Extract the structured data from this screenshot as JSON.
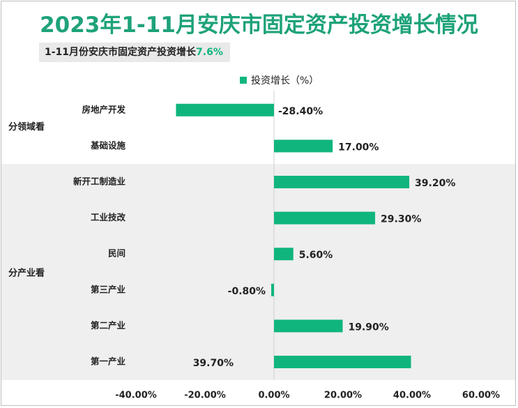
{
  "header": {
    "title": "2023年1-11月安庆市固定资产投资增长情况",
    "subtitle_prefix": "1-11月份安庆市固定资产投资增长",
    "subtitle_value": "7.6%"
  },
  "colors": {
    "bar": "#10b57e",
    "title": "#1ea27a",
    "band": "#efefef"
  },
  "chart_data": {
    "type": "bar",
    "orientation": "horizontal",
    "legend": "投资增长（%）",
    "legend_position": "top",
    "categories": [
      "房地产开发",
      "基础设施",
      "新开工制造业",
      "工业技改",
      "民间",
      "第三产业",
      "第二产业",
      "第一产业"
    ],
    "values": [
      -28.4,
      17.0,
      39.2,
      29.3,
      5.6,
      -0.8,
      19.9,
      39.7
    ],
    "value_labels": [
      "-28.40%",
      "17.00%",
      "39.20%",
      "29.30%",
      "5.60%",
      "-0.80%",
      "19.90%",
      "39.70%"
    ],
    "groups": [
      {
        "name": "分领域看",
        "categories": [
          "房地产开发",
          "基础设施"
        ]
      },
      {
        "name": "分产业看",
        "categories": [
          "新开工制造业",
          "工业技改",
          "民间",
          "第三产业",
          "第二产业",
          "第一产业"
        ]
      }
    ],
    "xlim": [
      -40,
      60
    ],
    "x_ticks": [
      -40,
      -20,
      0,
      20,
      40,
      60
    ],
    "x_tick_labels": [
      "-40.00%",
      "-20.00%",
      "0.00%",
      "20.00%",
      "40.00%",
      "60.00%"
    ],
    "grid": false
  }
}
